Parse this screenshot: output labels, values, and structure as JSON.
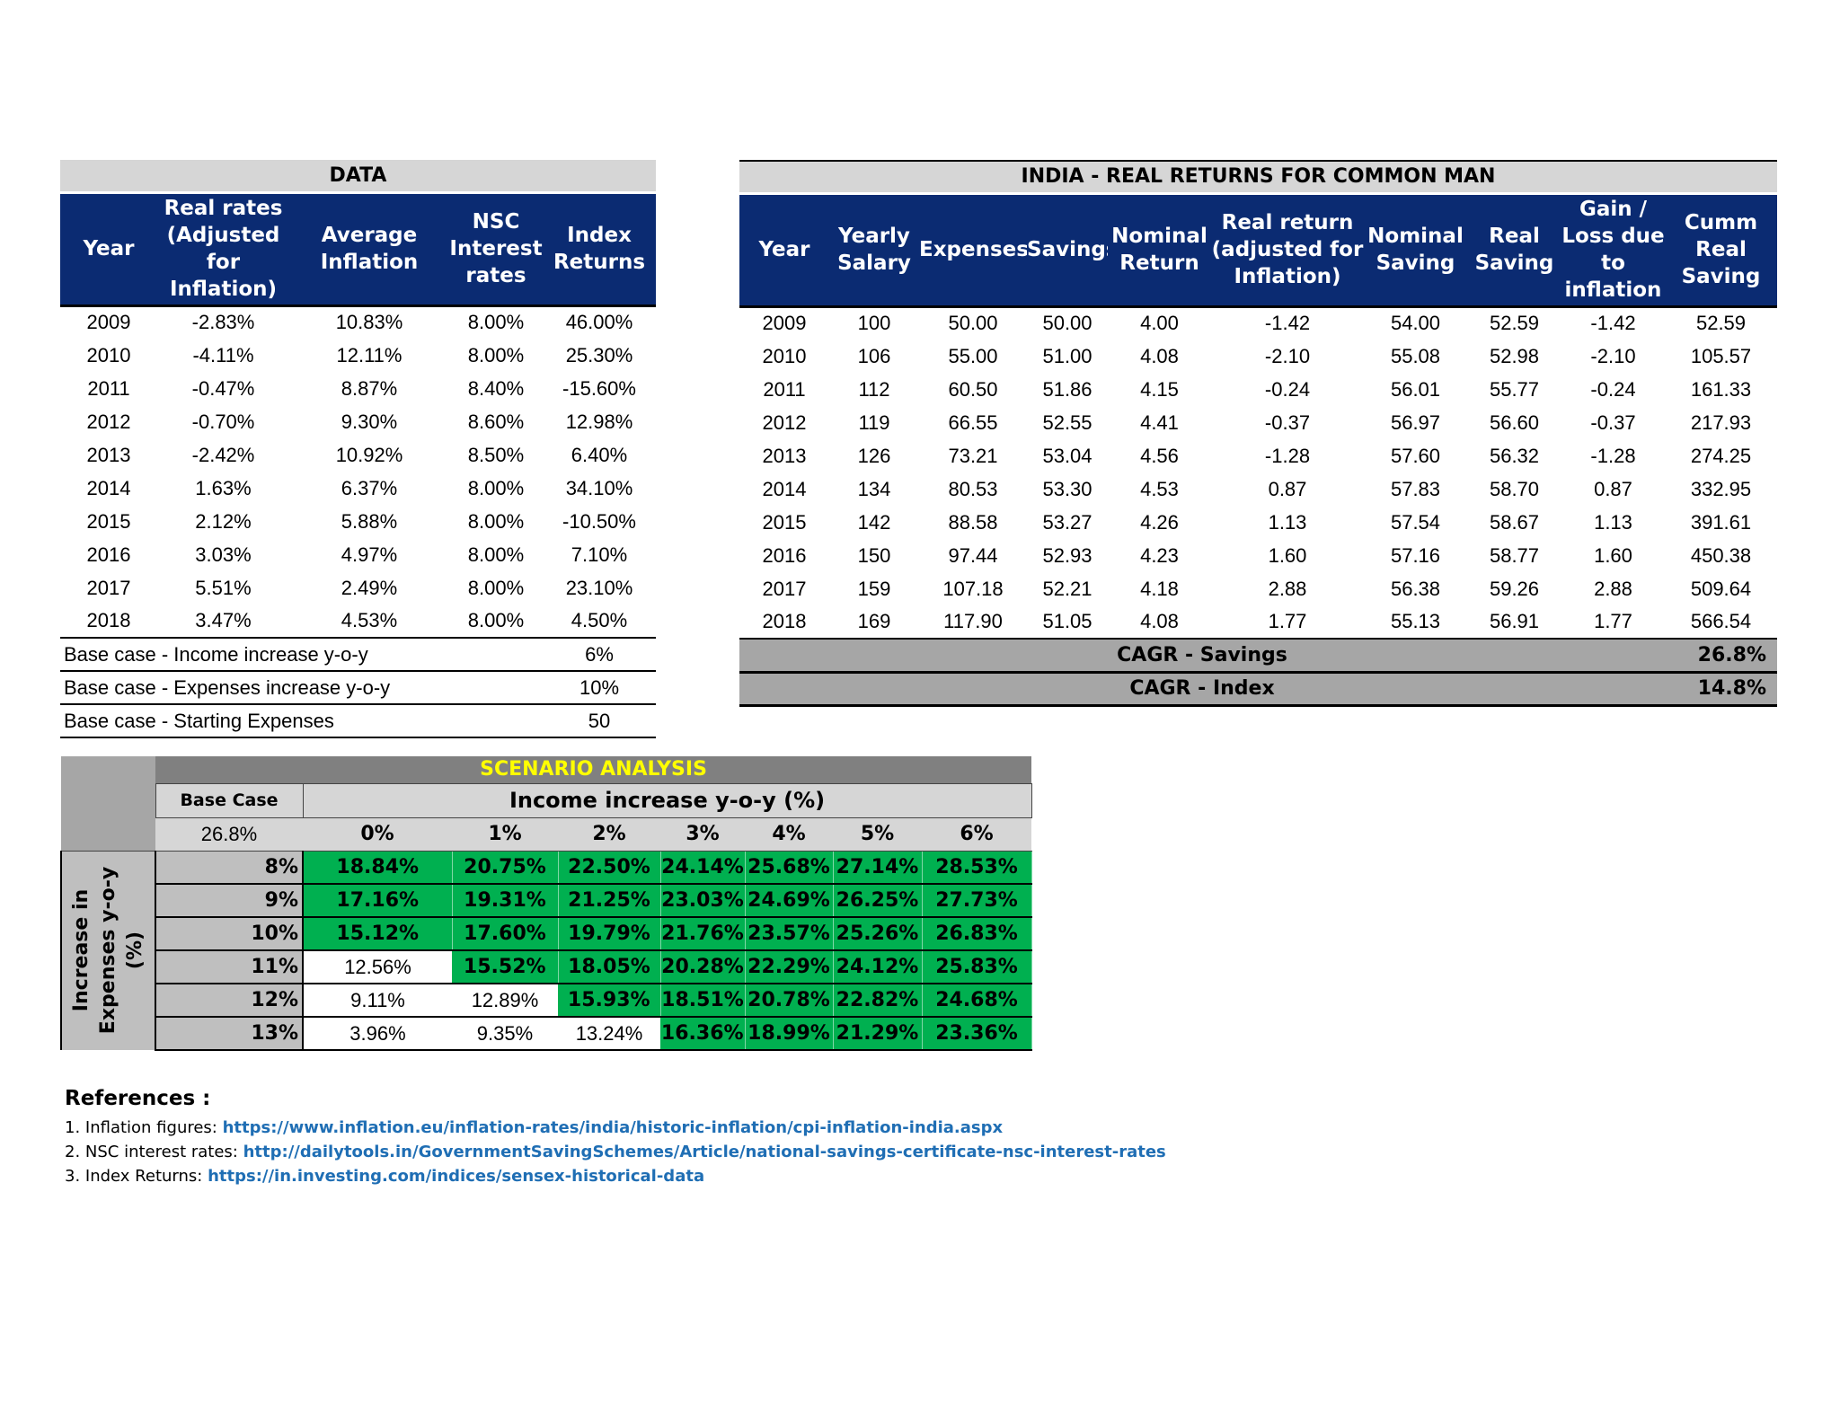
{
  "data_table": {
    "title": "DATA",
    "headers": [
      "Year",
      "Real rates (Adjusted for Inflation)",
      "Average Inflation",
      "NSC Interest rates",
      "Index Returns"
    ],
    "rows": [
      [
        "2009",
        "-2.83%",
        "10.83%",
        "8.00%",
        "46.00%"
      ],
      [
        "2010",
        "-4.11%",
        "12.11%",
        "8.00%",
        "25.30%"
      ],
      [
        "2011",
        "-0.47%",
        "8.87%",
        "8.40%",
        "-15.60%"
      ],
      [
        "2012",
        "-0.70%",
        "9.30%",
        "8.60%",
        "12.98%"
      ],
      [
        "2013",
        "-2.42%",
        "10.92%",
        "8.50%",
        "6.40%"
      ],
      [
        "2014",
        "1.63%",
        "6.37%",
        "8.00%",
        "34.10%"
      ],
      [
        "2015",
        "2.12%",
        "5.88%",
        "8.00%",
        "-10.50%"
      ],
      [
        "2016",
        "3.03%",
        "4.97%",
        "8.00%",
        "7.10%"
      ],
      [
        "2017",
        "5.51%",
        "2.49%",
        "8.00%",
        "23.10%"
      ],
      [
        "2018",
        "3.47%",
        "4.53%",
        "8.00%",
        "4.50%"
      ]
    ],
    "base_cases": [
      {
        "label": "Base case - Income increase y-o-y",
        "value": "6%"
      },
      {
        "label": "Base case - Expenses increase y-o-y",
        "value": "10%"
      },
      {
        "label": "Base case - Starting Expenses",
        "value": "50"
      }
    ]
  },
  "india_table": {
    "title": "INDIA - REAL RETURNS FOR COMMON MAN",
    "headers": [
      "Year",
      "Yearly Salary",
      "Expenses",
      "Savings",
      "Nominal Return",
      "Real return (adjusted for Inflation)",
      "Nominal Saving",
      "Real Saving",
      "Gain / Loss due to inflation",
      "Cumm Real Saving"
    ],
    "rows": [
      [
        "2009",
        "100",
        "50.00",
        "50.00",
        "4.00",
        "-1.42",
        "54.00",
        "52.59",
        "-1.42",
        "52.59"
      ],
      [
        "2010",
        "106",
        "55.00",
        "51.00",
        "4.08",
        "-2.10",
        "55.08",
        "52.98",
        "-2.10",
        "105.57"
      ],
      [
        "2011",
        "112",
        "60.50",
        "51.86",
        "4.15",
        "-0.24",
        "56.01",
        "55.77",
        "-0.24",
        "161.33"
      ],
      [
        "2012",
        "119",
        "66.55",
        "52.55",
        "4.41",
        "-0.37",
        "56.97",
        "56.60",
        "-0.37",
        "217.93"
      ],
      [
        "2013",
        "126",
        "73.21",
        "53.04",
        "4.56",
        "-1.28",
        "57.60",
        "56.32",
        "-1.28",
        "274.25"
      ],
      [
        "2014",
        "134",
        "80.53",
        "53.30",
        "4.53",
        "0.87",
        "57.83",
        "58.70",
        "0.87",
        "332.95"
      ],
      [
        "2015",
        "142",
        "88.58",
        "53.27",
        "4.26",
        "1.13",
        "57.54",
        "58.67",
        "1.13",
        "391.61"
      ],
      [
        "2016",
        "150",
        "97.44",
        "52.93",
        "4.23",
        "1.60",
        "57.16",
        "58.77",
        "1.60",
        "450.38"
      ],
      [
        "2017",
        "159",
        "107.18",
        "52.21",
        "4.18",
        "2.88",
        "56.38",
        "59.26",
        "2.88",
        "509.64"
      ],
      [
        "2018",
        "169",
        "117.90",
        "51.05",
        "4.08",
        "1.77",
        "55.13",
        "56.91",
        "1.77",
        "566.54"
      ]
    ],
    "cagr": [
      {
        "label": "CAGR - Savings",
        "value": "26.8%"
      },
      {
        "label": "CAGR - Index",
        "value": "14.8%"
      }
    ]
  },
  "scenario": {
    "title": "SCENARIO ANALYSIS",
    "base_case_label": "Base Case",
    "base_case_value": "26.8%",
    "income_label": "Income increase y-o-y (%)",
    "expense_label_line1": "Increase in",
    "expense_label_line2": "Expenses y-o-y",
    "expense_label_line3": "(%)",
    "income_cols": [
      "0%",
      "1%",
      "2%",
      "3%",
      "4%",
      "5%",
      "6%"
    ],
    "expense_rows": [
      "8%",
      "9%",
      "10%",
      "11%",
      "12%",
      "13%"
    ],
    "values": [
      [
        "18.84%",
        "20.75%",
        "22.50%",
        "24.14%",
        "25.68%",
        "27.14%",
        "28.53%"
      ],
      [
        "17.16%",
        "19.31%",
        "21.25%",
        "23.03%",
        "24.69%",
        "26.25%",
        "27.73%"
      ],
      [
        "15.12%",
        "17.60%",
        "19.79%",
        "21.76%",
        "23.57%",
        "25.26%",
        "26.83%"
      ],
      [
        "12.56%",
        "15.52%",
        "18.05%",
        "20.28%",
        "22.29%",
        "24.12%",
        "25.83%"
      ],
      [
        "9.11%",
        "12.89%",
        "15.93%",
        "18.51%",
        "20.78%",
        "22.82%",
        "24.68%"
      ],
      [
        "3.96%",
        "9.35%",
        "13.24%",
        "16.36%",
        "18.99%",
        "21.29%",
        "23.36%"
      ]
    ],
    "highlight_threshold": 14.8,
    "highlight_color": "#00b050"
  },
  "references": {
    "title": "References :",
    "items": [
      {
        "prefix": "1. Inflation figures: ",
        "link": "https://www.inflation.eu/inflation-rates/india/historic-inflation/cpi-inflation-india.aspx"
      },
      {
        "prefix": "2. NSC interest rates: ",
        "link": "http://dailytools.in/GovernmentSavingSchemes/Article/national-savings-certificate-nsc-interest-rates"
      },
      {
        "prefix": "3. Index Returns: ",
        "link": "https://in.investing.com/indices/sensex-historical-data"
      }
    ]
  },
  "colors": {
    "header_navy": "#0b2b72",
    "title_gray": "#d6d6d6",
    "cagr_gray": "#a6a6a6",
    "scenario_title_text": "#ffff00",
    "link_blue": "#1f6eb4"
  }
}
